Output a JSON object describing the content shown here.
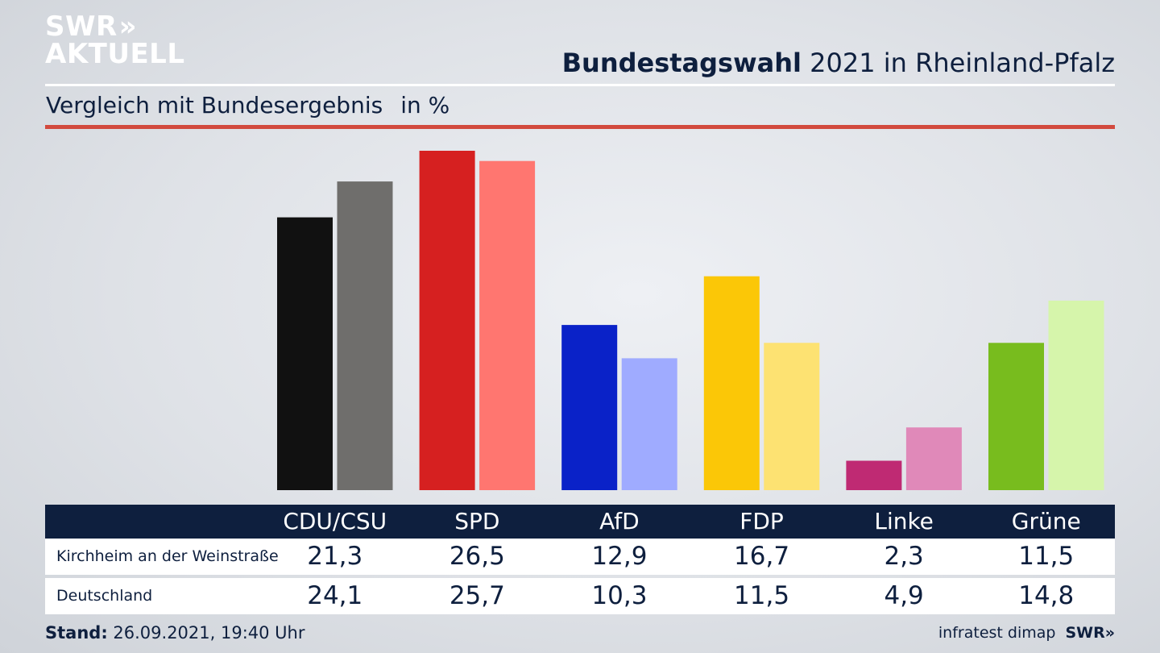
{
  "logo": {
    "line1": "SWR",
    "arrows": "»",
    "line2": "AKTUELL"
  },
  "header": {
    "title_bold": "Bundestagswahl",
    "title_rest": " 2021 in Rheinland-Pfalz",
    "subtitle": "Vergleich mit Bundesergebnis",
    "unit": "in %"
  },
  "chart_data": {
    "type": "bar",
    "title": "Bundestagswahl 2021 in Rheinland-Pfalz",
    "subtitle": "Vergleich mit Bundesergebnis in %",
    "categories": [
      "CDU/CSU",
      "SPD",
      "AfD",
      "FDP",
      "Linke",
      "Grüne"
    ],
    "series": [
      {
        "name": "Kirchheim an der Weinstraße",
        "values": [
          21.3,
          26.5,
          12.9,
          16.7,
          2.3,
          11.5
        ],
        "colors": [
          "#111111",
          "#d62020",
          "#0a22c8",
          "#fbc707",
          "#bf2a73",
          "#78bc1e"
        ]
      },
      {
        "name": "Deutschland",
        "values": [
          24.1,
          25.7,
          10.3,
          11.5,
          4.9,
          14.8
        ],
        "colors": [
          "#6f6e6c",
          "#ff7670",
          "#9fabff",
          "#fde272",
          "#e089b9",
          "#d6f5ab"
        ]
      }
    ],
    "ylim": [
      0,
      26.5
    ],
    "grid": false,
    "legend": "none"
  },
  "table": {
    "headers": [
      "CDU/CSU",
      "SPD",
      "AfD",
      "FDP",
      "Linke",
      "Grüne"
    ],
    "rows": [
      {
        "label": "Kirchheim an der Weinstraße",
        "values": [
          "21,3",
          "26,5",
          "12,9",
          "16,7",
          "2,3",
          "11,5"
        ]
      },
      {
        "label": "Deutschland",
        "values": [
          "24,1",
          "25,7",
          "10,3",
          "11,5",
          "4,9",
          "14,8"
        ]
      }
    ]
  },
  "footer": {
    "stand_label": "Stand:",
    "stand_value": " 26.09.2021, 19:40 Uhr",
    "source": "infratest dimap",
    "brand": "SWR»"
  }
}
